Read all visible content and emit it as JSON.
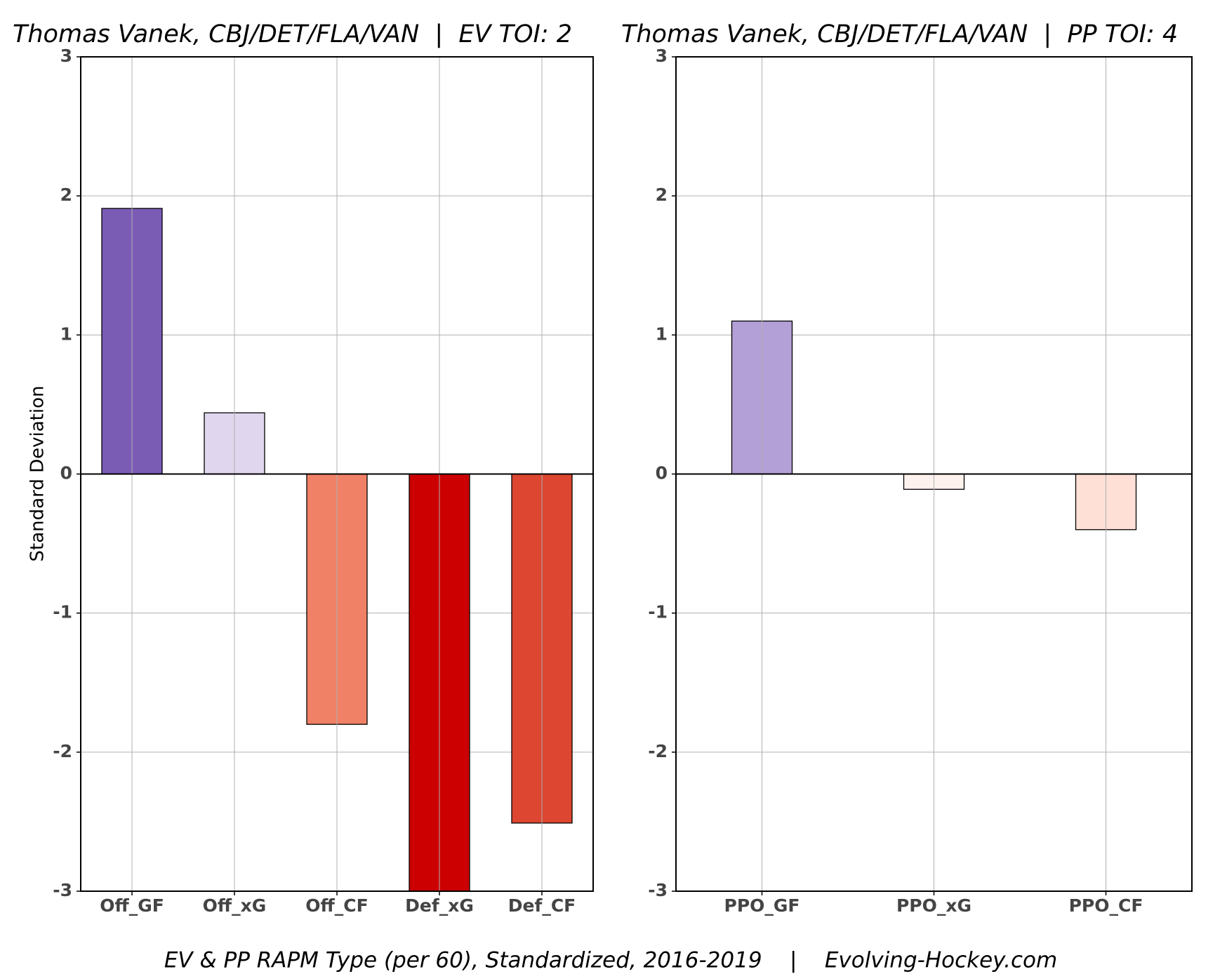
{
  "chart_data": [
    {
      "type": "bar",
      "title": "Thomas Vanek, CBJ/DET/FLA/VAN  |  EV TOI: 2",
      "y_label": "Standard Deviation",
      "categories": [
        "Off_GF",
        "Off_xG",
        "Off_CF",
        "Def_xG",
        "Def_CF"
      ],
      "values": [
        1.91,
        0.44,
        -1.8,
        -3.0,
        -2.51
      ],
      "colors": [
        "#7b5cb5",
        "#e0d6ee",
        "#f08166",
        "#cc0000",
        "#dd4630"
      ],
      "ylim": [
        -3,
        3
      ],
      "yticks": [
        -3,
        -2,
        -1,
        0,
        1,
        2,
        3
      ],
      "grid": true
    },
    {
      "type": "bar",
      "title": "Thomas Vanek, CBJ/DET/FLA/VAN  |  PP TOI: 4",
      "categories": [
        "PPO_GF",
        "PPO_xG",
        "PPO_CF"
      ],
      "values": [
        1.1,
        -0.11,
        -0.4
      ],
      "colors": [
        "#b3a0d6",
        "#fef2ee",
        "#fee0d6"
      ],
      "ylim": [
        -3,
        3
      ],
      "yticks": [
        -3,
        -2,
        -1,
        0,
        1,
        2,
        3
      ],
      "grid": true
    }
  ],
  "caption": "EV & PP RAPM Type (per 60), Standardized, 2016-2019    |    Evolving-Hockey.com"
}
